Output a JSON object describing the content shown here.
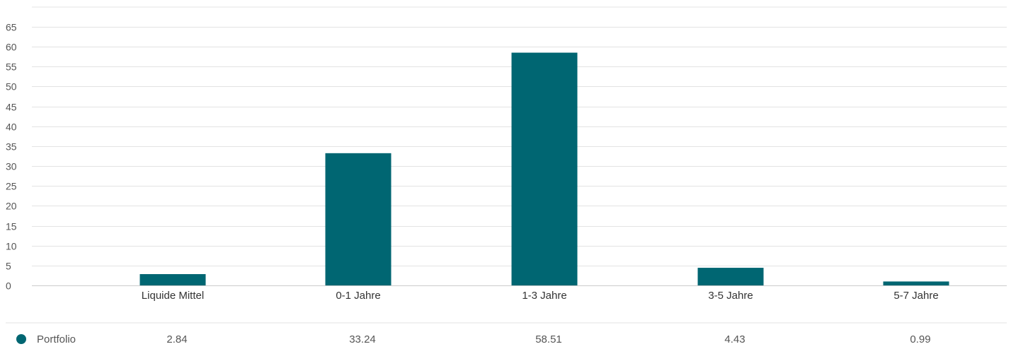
{
  "chart_data": {
    "type": "bar",
    "title": "",
    "xlabel": "",
    "ylabel": "",
    "categories": [
      "Liquide Mittel",
      "0-1 Jahre",
      "1-3 Jahre",
      "3-5 Jahre",
      "5-7 Jahre"
    ],
    "series": [
      {
        "name": "Portfolio",
        "values": [
          2.84,
          33.24,
          58.51,
          4.43,
          0.99
        ],
        "value_labels": [
          "2.84",
          "33.24",
          "58.51",
          "4.43",
          "0.99"
        ],
        "color": "#006672"
      }
    ],
    "ylim": [
      0,
      65
    ],
    "yticks": [
      "0",
      "5",
      "10",
      "15",
      "20",
      "25",
      "30",
      "35",
      "40",
      "45",
      "50",
      "55",
      "60",
      "65"
    ],
    "grid": true,
    "legend": "bottom-left"
  },
  "colors": {
    "bar": "#006672",
    "grid": "#e3e3e3",
    "axis": "#cccccc"
  }
}
